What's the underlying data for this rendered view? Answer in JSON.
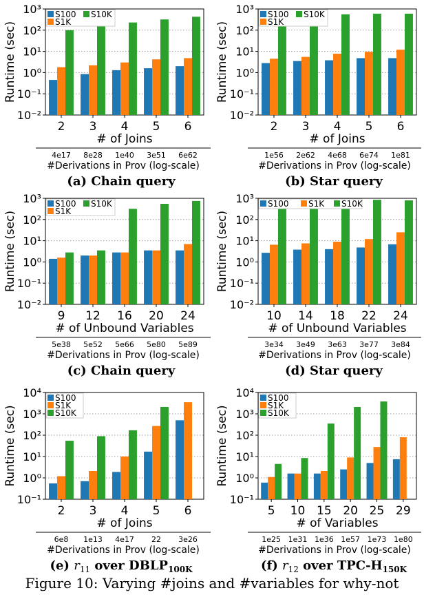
{
  "colors": {
    "S100": "#1f77b4",
    "S1K": "#ff7f0e",
    "S10K": "#2ca02c"
  },
  "caption": "Figure 10: Varying #joins and #variables for why-not",
  "chart_data": [
    {
      "type": "bar",
      "label": "(a)",
      "title": "Chain query",
      "ylabel": "Runtime (sec)",
      "xlabel": "# of Joins",
      "yscale": "log",
      "ylim": [
        0.01,
        1000
      ],
      "yticks": [
        "10⁻²",
        "10⁻¹",
        "10⁰",
        "10¹",
        "10²",
        "10³"
      ],
      "categories": [
        "2",
        "3",
        "4",
        "5",
        "6"
      ],
      "series": [
        {
          "name": "S100",
          "values": [
            0.45,
            0.85,
            1.3,
            1.6,
            2.0
          ]
        },
        {
          "name": "S1K",
          "values": [
            1.8,
            2.2,
            3.0,
            4.2,
            4.8
          ]
        },
        {
          "name": "S10K",
          "values": [
            100,
            160,
            230,
            320,
            430
          ]
        }
      ],
      "legend": "top-left-two-columns",
      "deriv_ticks": [
        "4e17",
        "8e28",
        "1e40",
        "3e51",
        "6e62"
      ],
      "deriv_label": "#Derivations in Prov (log-scale)"
    },
    {
      "type": "bar",
      "label": "(b)",
      "title": "Star query",
      "ylabel": "Runtime (sec)",
      "xlabel": "# of Joins",
      "yscale": "log",
      "ylim": [
        0.01,
        1000
      ],
      "yticks": [
        "10⁻²",
        "10⁻¹",
        "10⁰",
        "10¹",
        "10²",
        "10³"
      ],
      "categories": [
        "2",
        "3",
        "4",
        "5",
        "6"
      ],
      "series": [
        {
          "name": "S100",
          "values": [
            2.8,
            3.5,
            3.8,
            4.8,
            4.8
          ]
        },
        {
          "name": "S1K",
          "values": [
            4.5,
            5.5,
            7.8,
            9.5,
            12
          ]
        },
        {
          "name": "S10K",
          "values": [
            180,
            230,
            560,
            600,
            600
          ]
        }
      ],
      "legend": "top-left-two-columns",
      "deriv_ticks": [
        "1e56",
        "2e62",
        "4e68",
        "6e74",
        "1e81"
      ],
      "deriv_label": "#Derivations in Prov (log-scale)"
    },
    {
      "type": "bar",
      "label": "(c)",
      "title": "Chain query",
      "ylabel": "Runtime (sec)",
      "xlabel": "# of Unbound Variables",
      "yscale": "log",
      "ylim": [
        0.01,
        1000
      ],
      "yticks": [
        "10⁻²",
        "10⁻¹",
        "10⁰",
        "10¹",
        "10²",
        "10³"
      ],
      "categories": [
        "9",
        "12",
        "16",
        "20",
        "24"
      ],
      "series": [
        {
          "name": "S100",
          "values": [
            1.4,
            2.0,
            2.8,
            3.5,
            3.5
          ]
        },
        {
          "name": "S1K",
          "values": [
            1.6,
            2.0,
            2.8,
            3.5,
            7.0
          ]
        },
        {
          "name": "S10K",
          "values": [
            2.8,
            3.5,
            320,
            550,
            750
          ]
        }
      ],
      "legend": "top-left-two-columns",
      "deriv_ticks": [
        "5e38",
        "5e52",
        "5e66",
        "5e80",
        "5e89"
      ],
      "deriv_label": "#Derivations in Prov (log-scale)"
    },
    {
      "type": "bar",
      "label": "(d)",
      "title": "Star query",
      "ylabel": "Runtime (sec)",
      "xlabel": "# of Unbound Variables",
      "yscale": "log",
      "ylim": [
        0.01,
        1000
      ],
      "yticks": [
        "10⁻²",
        "10⁻¹",
        "10⁰",
        "10¹",
        "10²",
        "10³"
      ],
      "categories": [
        "10",
        "14",
        "18",
        "22",
        "24"
      ],
      "series": [
        {
          "name": "S100",
          "values": [
            2.7,
            3.8,
            4.0,
            4.8,
            6.8
          ]
        },
        {
          "name": "S1K",
          "values": [
            6.5,
            7.5,
            9.0,
            12,
            25
          ]
        },
        {
          "name": "S10K",
          "values": [
            380,
            420,
            500,
            850,
            800
          ]
        }
      ],
      "legend": "top-row",
      "deriv_ticks": [
        "3e34",
        "3e49",
        "3e63",
        "3e77",
        "3e84"
      ],
      "deriv_label": "#Derivations in Prov (log-scale)"
    },
    {
      "type": "bar",
      "label": "(e)",
      "title_prefix": "r",
      "title_sub": "11",
      "title_mid": " over DBLP",
      "title_sub2": "100K",
      "ylabel": "Runtime (sec)",
      "xlabel": "# of Joins",
      "yscale": "log",
      "ylim": [
        0.1,
        10000
      ],
      "yticks": [
        "10⁻¹",
        "10⁰",
        "10¹",
        "10²",
        "10³",
        "10⁴"
      ],
      "categories": [
        "2",
        "3",
        "4",
        "5",
        "6"
      ],
      "series": [
        {
          "name": "S100",
          "values": [
            0.55,
            0.7,
            1.9,
            17,
            500
          ]
        },
        {
          "name": "S1K",
          "values": [
            1.2,
            2.1,
            10,
            270,
            3500
          ]
        },
        {
          "name": "S10K",
          "values": [
            55,
            90,
            170,
            2100,
            null
          ]
        }
      ],
      "legend": "top-left-stacked",
      "deriv_ticks": [
        "6e8",
        "1e13",
        "4e17",
        "22",
        "3e26"
      ],
      "deriv_label": "#Derivations in Prov (log-scale)"
    },
    {
      "type": "bar",
      "label": "(f)",
      "title_prefix": "r",
      "title_sub": "12",
      "title_mid": " over TPC-H",
      "title_sub2": "150K",
      "ylabel": "Runtime (sec)",
      "xlabel": "# of Variables",
      "yscale": "log",
      "ylim": [
        0.1,
        10000
      ],
      "yticks": [
        "10⁻¹",
        "10⁰",
        "10¹",
        "10²",
        "10³",
        "10⁴"
      ],
      "categories": [
        "5",
        "10",
        "15",
        "20",
        "25",
        "29"
      ],
      "series": [
        {
          "name": "S100",
          "values": [
            0.6,
            1.6,
            1.6,
            2.5,
            5.0,
            7.5
          ]
        },
        {
          "name": "S1K",
          "values": [
            1.1,
            1.6,
            2.1,
            9.0,
            28,
            80
          ]
        },
        {
          "name": "S10K",
          "values": [
            4.5,
            8.5,
            350,
            2100,
            3800,
            null
          ]
        }
      ],
      "legend": "top-left-stacked",
      "deriv_ticks": [
        "1e25",
        "1e31",
        "1e36",
        "1e57",
        "1e73",
        "1e80"
      ],
      "deriv_label": "#Derivations in Prov (log-scale)"
    }
  ]
}
